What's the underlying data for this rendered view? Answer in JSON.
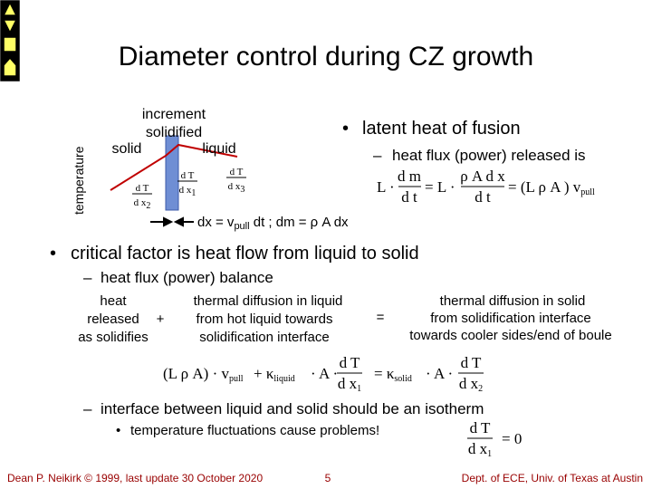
{
  "title": "Diameter control during CZ growth",
  "diagram": {
    "axis_label": "temperature",
    "increment_label": [
      "increment",
      "solidified"
    ],
    "solid": "solid",
    "liquid": "liquid",
    "gradients": [
      {
        "num": "d T",
        "den": "d x",
        "sub": "2"
      },
      {
        "num": "d T",
        "den": "d x",
        "sub": "1"
      },
      {
        "num": "d T",
        "den": "d x",
        "sub": "3"
      }
    ],
    "motion": {
      "lead": "dx = v",
      "sub": "pull",
      "rest": " dt ; dm = ρ A dx"
    }
  },
  "latent": {
    "marker": "•",
    "text": "latent heat of fusion",
    "sub_marker": "–",
    "sub_text": "heat flux (power) released is",
    "equation": {
      "a": "L ·",
      "f1_num": "d m",
      "f1_den": "d t",
      "b": "= L ·",
      "f2_num": "ρ A d x",
      "f2_den": "d t",
      "c": "= (L ρ A ) v",
      "c_sub": "pull"
    }
  },
  "critical": {
    "marker": "•",
    "text": "critical factor is heat flow from liquid to solid",
    "sub_marker": "–",
    "sub_text": "heat flux (power) balance",
    "terms": [
      [
        "heat",
        "released",
        "as solidifies"
      ],
      [
        "thermal diffusion in liquid",
        "from hot liquid towards",
        "solidification interface"
      ],
      [
        "thermal diffusion in solid",
        "from solidification interface",
        "towards cooler sides/end of boule"
      ]
    ],
    "plus": "+",
    "equals": "=",
    "equation": {
      "a": "(L ρ A) · v",
      "a_sub": "pull",
      "b": "+ κ",
      "b_sub": "liquid",
      "c": "· A ·",
      "f1_num": "d T",
      "f1_den": "d x",
      "f1_sub": "1",
      "d": "= κ",
      "d_sub": "solid",
      "e": "· A ·",
      "f2_num": "d T",
      "f2_den": "d x",
      "f2_sub": "2"
    }
  },
  "isotherm": {
    "marker": "–",
    "text": "interface between liquid and solid should be an isotherm",
    "bullet_marker": "•",
    "bullet_text": "temperature fluctuations cause problems!",
    "equation": {
      "num": "d T",
      "den": "d x",
      "sub": "1",
      "rhs": "= 0"
    }
  },
  "footer": {
    "author": "Dean P. Neikirk © 1999, last update 30 October 2020",
    "page": "5",
    "dept": "Dept. of ECE, Univ. of Texas at Austin"
  }
}
